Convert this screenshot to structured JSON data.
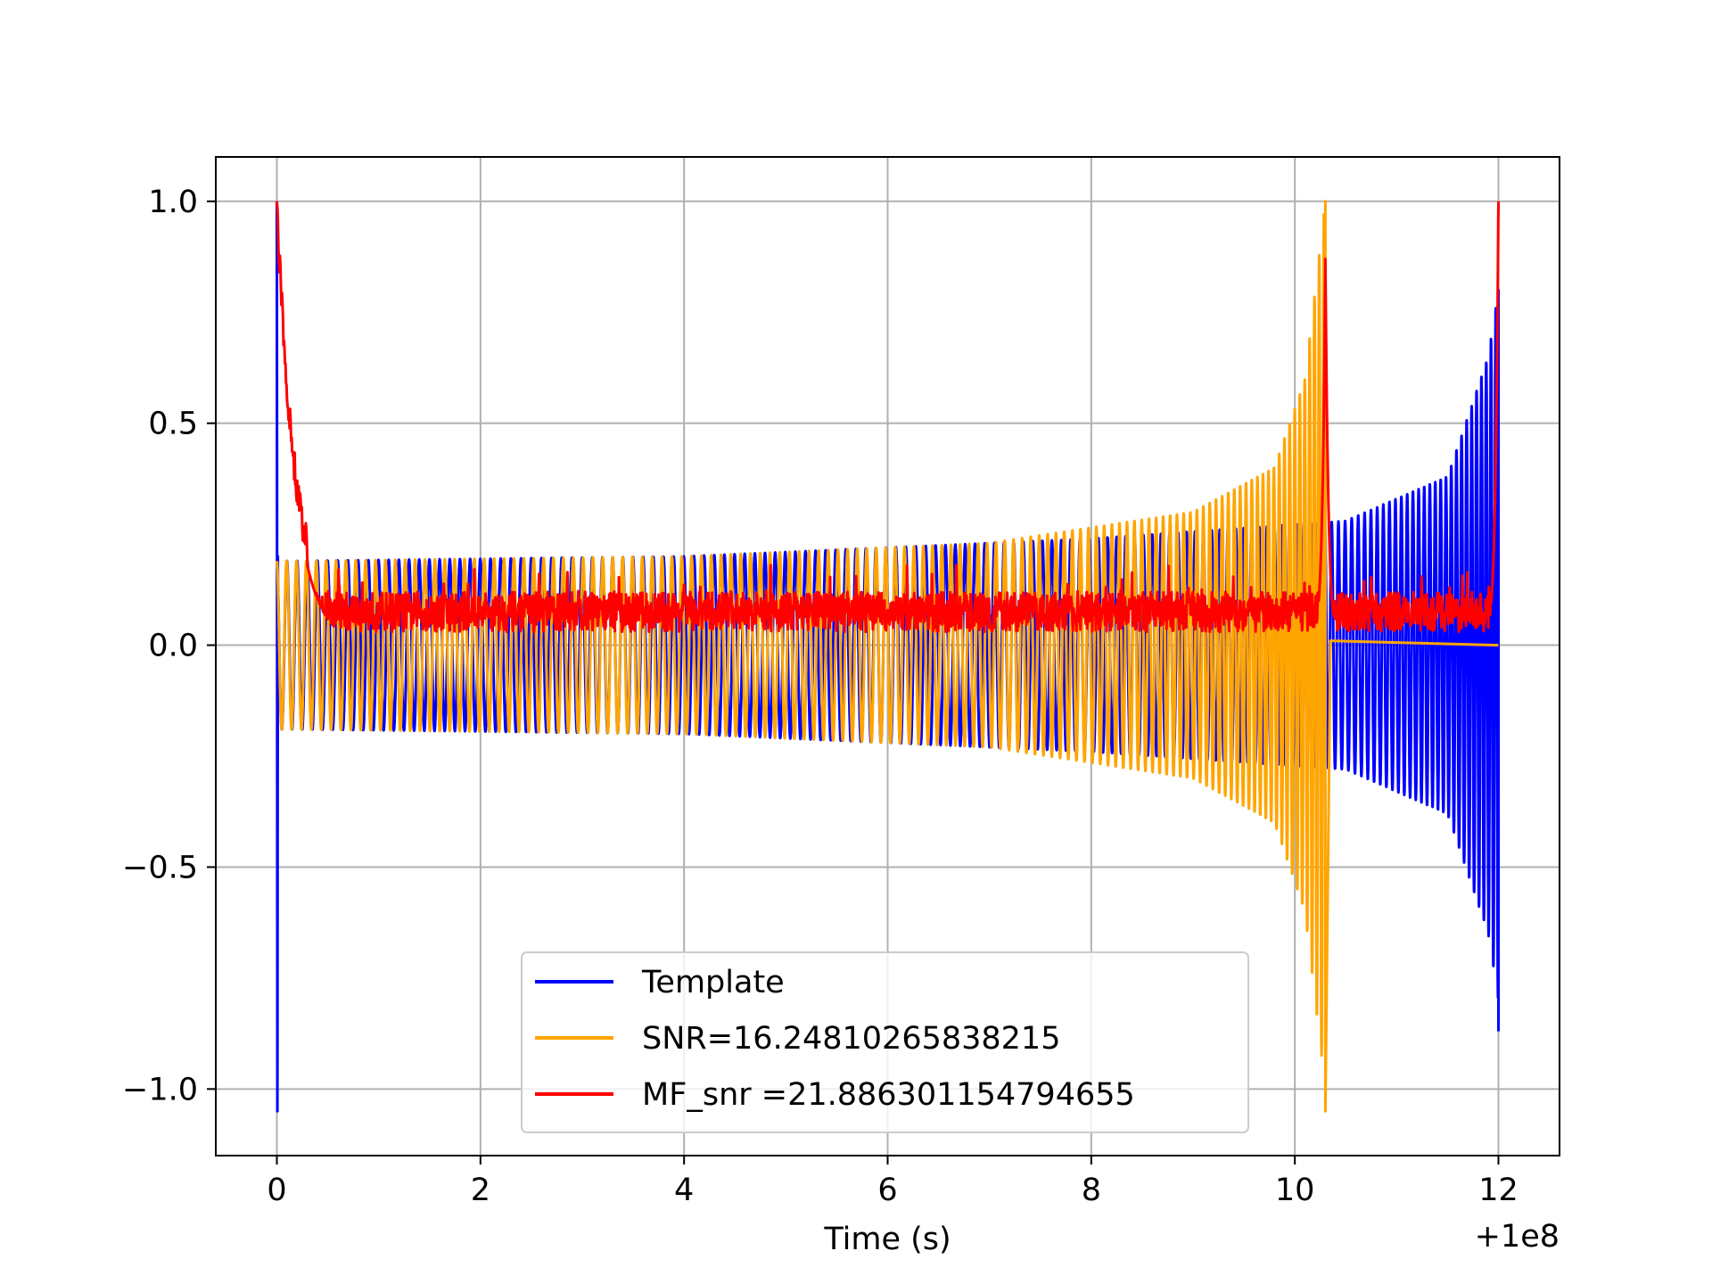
{
  "chart_data": {
    "type": "line",
    "title": "",
    "xlabel": "Time (s)",
    "ylabel": "",
    "x_offset_label": "+1e8",
    "xlim": [
      -0.6,
      12.6
    ],
    "ylim": [
      -1.15,
      1.1
    ],
    "xticks": [
      0,
      2,
      4,
      6,
      8,
      10,
      12
    ],
    "xtick_labels": [
      "0",
      "2",
      "4",
      "6",
      "8",
      "10",
      "12"
    ],
    "yticks": [
      1.0,
      0.5,
      0.0,
      -0.5,
      -1.0
    ],
    "ytick_labels": [
      "1.0",
      "0.5",
      "0.0",
      "−0.5",
      "−1.0"
    ],
    "grid": true,
    "legend_position": "lower center",
    "series": [
      {
        "name": "Template",
        "color": "#0000ff",
        "description": "chirp that oscillates between about -0.2 and +0.2 with growing amplitude (about 0.3 near t=10.5) and frequency, ending in a spike to about +0.8 / -0.87 at t=12",
        "envelope_points": [
          [
            0.3,
            0.19
          ],
          [
            4,
            0.2
          ],
          [
            8,
            0.24
          ],
          [
            10.5,
            0.28
          ],
          [
            11.5,
            0.38
          ],
          [
            11.9,
            0.65
          ],
          [
            12.0,
            0.8
          ]
        ],
        "start_spike": [
          [
            0.0,
            1.0
          ],
          [
            0.0,
            -1.05
          ]
        ],
        "end_spike": [
          [
            12.0,
            0.8
          ],
          [
            12.0,
            -0.87
          ]
        ]
      },
      {
        "name": "SNR=16.24810265838215",
        "color": "#ffa500",
        "description": "chirp starting at t=0, amplitude about 0.19, growing to about 0.4 near t=10 and peaking at +1.0 / -1.05 at t=10.3, then decaying to almost zero",
        "envelope_points": [
          [
            0.3,
            0.19
          ],
          [
            4,
            0.2
          ],
          [
            7,
            0.23
          ],
          [
            9,
            0.3
          ],
          [
            9.8,
            0.4
          ],
          [
            10.1,
            0.6
          ],
          [
            10.3,
            1.0
          ]
        ],
        "end_spike": [
          [
            10.3,
            1.0
          ],
          [
            10.3,
            -1.05
          ]
        ]
      },
      {
        "name": "MF_snr =21.886301154794655",
        "color": "#ff0000",
        "description": "noisy non-negative matched-filter output around 0.02–0.15, with peaks of 0.95 at t=0, 0.87 at t=10.3 and 1.0 at t=12",
        "peaks": [
          [
            0.0,
            0.95
          ],
          [
            10.3,
            0.87
          ],
          [
            12.0,
            1.0
          ]
        ],
        "baseline_range": [
          0.0,
          0.15
        ]
      }
    ]
  }
}
